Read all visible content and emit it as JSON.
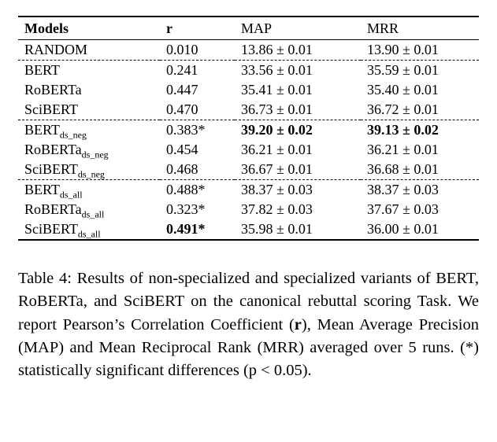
{
  "table": {
    "headers": [
      {
        "label": "Models"
      },
      {
        "label": "r"
      },
      {
        "label": "MAP"
      },
      {
        "label": "MRR"
      }
    ],
    "groups": [
      {
        "rows": [
          {
            "model": "RANDOM",
            "sub": "",
            "r": "0.010",
            "r_bold": false,
            "map": "13.86 ± 0.01",
            "map_bold": false,
            "mrr": "13.90 ± 0.01",
            "mrr_bold": false
          }
        ]
      },
      {
        "rows": [
          {
            "model": "BERT",
            "sub": "",
            "r": "0.241",
            "r_bold": false,
            "map": "33.56 ± 0.01",
            "map_bold": false,
            "mrr": "35.59 ± 0.01",
            "mrr_bold": false
          },
          {
            "model": "RoBERTa",
            "sub": "",
            "r": "0.447",
            "r_bold": false,
            "map": "35.41 ± 0.01",
            "map_bold": false,
            "mrr": "35.40 ± 0.01",
            "mrr_bold": false
          },
          {
            "model": "SciBERT",
            "sub": "",
            "r": "0.470",
            "r_bold": false,
            "map": "36.73 ± 0.01",
            "map_bold": false,
            "mrr": "36.72 ± 0.01",
            "mrr_bold": false
          }
        ]
      },
      {
        "rows": [
          {
            "model": "BERT",
            "sub": "ds_neg",
            "r": "0.383*",
            "r_bold": false,
            "map": "39.20 ± 0.02",
            "map_bold": true,
            "mrr": "39.13 ± 0.02",
            "mrr_bold": true
          },
          {
            "model": "RoBERTa",
            "sub": "ds_neg",
            "r": "0.454",
            "r_bold": false,
            "map": "36.21 ± 0.01",
            "map_bold": false,
            "mrr": "36.21 ± 0.01",
            "mrr_bold": false
          },
          {
            "model": "SciBERT",
            "sub": "ds_neg",
            "r": "0.468",
            "r_bold": false,
            "map": "36.67 ± 0.01",
            "map_bold": false,
            "mrr": "36.68 ± 0.01",
            "mrr_bold": false
          }
        ]
      },
      {
        "rows": [
          {
            "model": "BERT",
            "sub": "ds_all",
            "r": "0.488*",
            "r_bold": false,
            "map": "38.37 ± 0.03",
            "map_bold": false,
            "mrr": "38.37 ± 0.03",
            "mrr_bold": false
          },
          {
            "model": "RoBERTa",
            "sub": "ds_all",
            "r": "0.323*",
            "r_bold": false,
            "map": "37.82 ± 0.03",
            "map_bold": false,
            "mrr": "37.67 ± 0.03",
            "mrr_bold": false
          },
          {
            "model": "SciBERT",
            "sub": "ds_all",
            "r": "0.491*",
            "r_bold": true,
            "map": "35.98 ± 0.01",
            "map_bold": false,
            "mrr": "36.00 ± 0.01",
            "mrr_bold": false
          }
        ]
      }
    ]
  },
  "caption": {
    "parts": [
      {
        "text": "Table 4: Results of non-specialized and specialized variants of BERT, RoBERTa, and SciBERT on the canonical rebuttal scoring Task. We report Pearson’s Correlation Coefficient (",
        "bold": false
      },
      {
        "text": "r",
        "bold": true
      },
      {
        "text": "), Mean Average Precision (MAP) and Mean Reciprocal Rank (MRR) averaged over 5 runs. (*) statistically significant differences (p < 0.05).",
        "bold": false
      }
    ]
  }
}
